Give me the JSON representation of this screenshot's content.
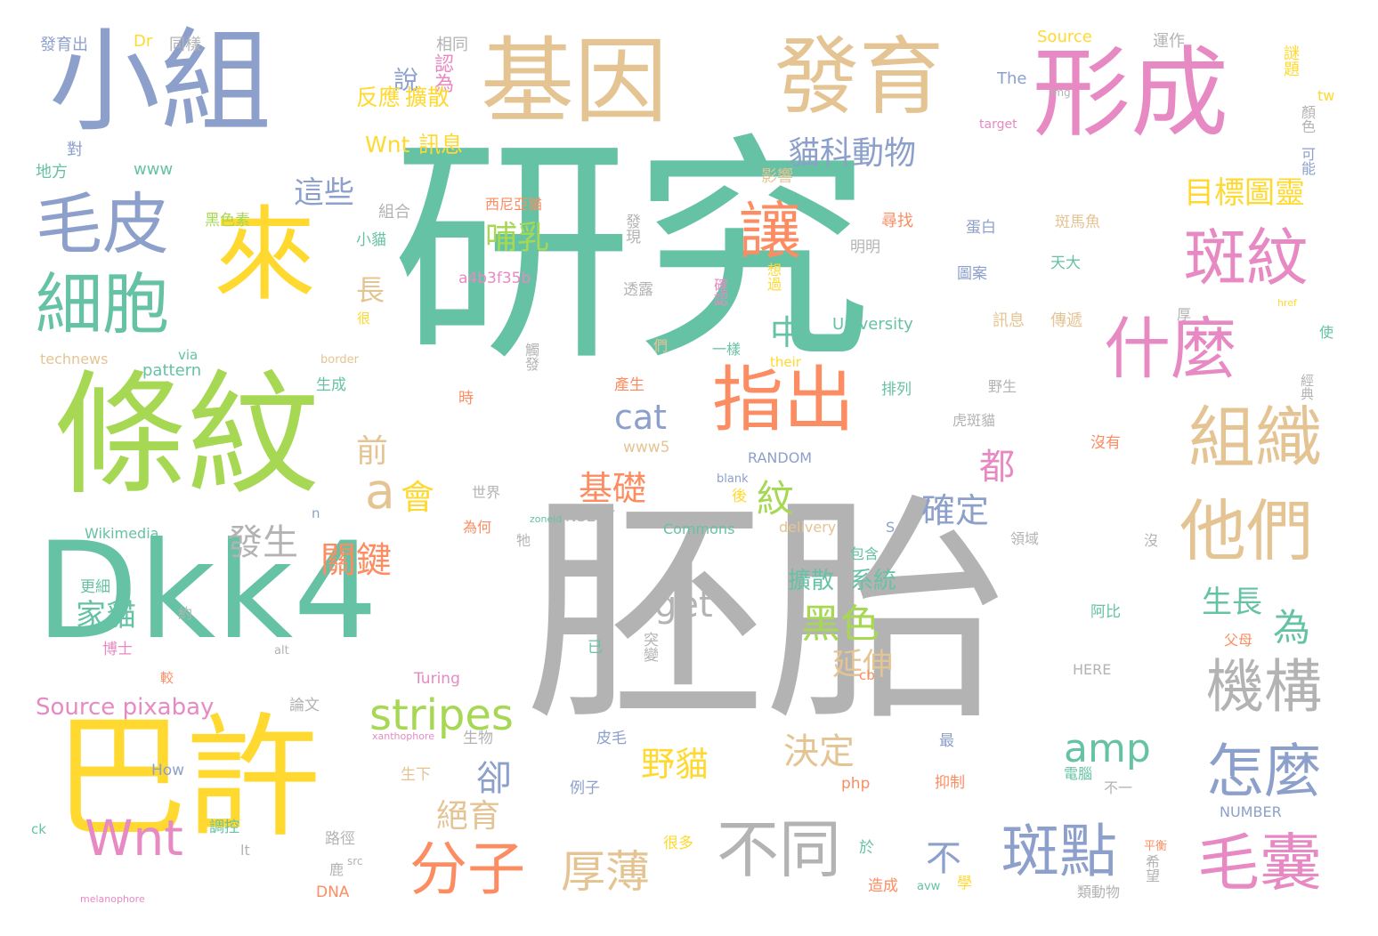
{
  "palette": {
    "teal": "#66c2a5",
    "orange": "#fc8d62",
    "blue": "#8da0cb",
    "pink": "#e78ac3",
    "green": "#a6d854",
    "yellow": "#ffd92f",
    "tan": "#e5c494",
    "gray": "#b3b3b3"
  },
  "words": [
    {
      "text": "研究",
      "color": "teal"
    },
    {
      "text": "胚胎",
      "color": "gray"
    },
    {
      "text": "Dkk4",
      "color": "teal"
    },
    {
      "text": "巴許",
      "color": "yellow"
    },
    {
      "text": "條紋",
      "color": "green"
    },
    {
      "text": "小組",
      "color": "blue"
    },
    {
      "text": "基因",
      "color": "tan"
    },
    {
      "text": "形成",
      "color": "pink"
    },
    {
      "text": "發育",
      "color": "tan"
    },
    {
      "text": "來",
      "color": "yellow"
    },
    {
      "text": "毛皮",
      "color": "blue"
    },
    {
      "text": "細胞",
      "color": "teal"
    },
    {
      "text": "斑紋",
      "color": "pink"
    },
    {
      "text": "什麼",
      "color": "pink"
    },
    {
      "text": "組織",
      "color": "tan"
    },
    {
      "text": "他們",
      "color": "tan"
    },
    {
      "text": "指出",
      "color": "orange"
    },
    {
      "text": "讓",
      "color": "orange"
    },
    {
      "text": "機構",
      "color": "gray"
    },
    {
      "text": "怎麼",
      "color": "blue"
    },
    {
      "text": "毛囊",
      "color": "pink"
    },
    {
      "text": "斑點",
      "color": "blue"
    },
    {
      "text": "不同",
      "color": "gray"
    },
    {
      "text": "分子",
      "color": "orange"
    },
    {
      "text": "Wnt",
      "color": "pink"
    },
    {
      "text": "stripes",
      "color": "green"
    },
    {
      "text": "厚薄",
      "color": "tan"
    },
    {
      "text": "貓科動物",
      "color": "blue"
    },
    {
      "text": "目標圖靈",
      "color": "yellow"
    },
    {
      "text": "這些",
      "color": "blue"
    },
    {
      "text": "哺乳",
      "color": "green"
    },
    {
      "text": "說",
      "color": "blue"
    },
    {
      "text": "認為",
      "color": "pink"
    },
    {
      "text": "反應",
      "color": "yellow"
    },
    {
      "text": "擴散",
      "color": "yellow"
    },
    {
      "text": "Wnt",
      "color": "yellow"
    },
    {
      "text": "訊息",
      "color": "yellow"
    },
    {
      "text": "長",
      "color": "tan"
    },
    {
      "text": "中",
      "color": "teal"
    },
    {
      "text": "cat",
      "color": "blue"
    },
    {
      "text": "a",
      "color": "tan"
    },
    {
      "text": "會",
      "color": "yellow"
    },
    {
      "text": "前",
      "color": "tan"
    },
    {
      "text": "紋",
      "color": "green"
    },
    {
      "text": "都",
      "color": "pink"
    },
    {
      "text": "確定",
      "color": "blue"
    },
    {
      "text": "基礎",
      "color": "orange"
    },
    {
      "text": "發生",
      "color": "gray"
    },
    {
      "text": "關鍵",
      "color": "orange"
    },
    {
      "text": "家貓",
      "color": "teal"
    },
    {
      "text": "get",
      "color": "gray"
    },
    {
      "text": "黑色",
      "color": "green"
    },
    {
      "text": "延伸",
      "color": "tan"
    },
    {
      "text": "為",
      "color": "teal"
    },
    {
      "text": "生長",
      "color": "teal"
    },
    {
      "text": "不",
      "color": "blue"
    },
    {
      "text": "amp",
      "color": "teal"
    },
    {
      "text": "卻",
      "color": "blue"
    },
    {
      "text": "野貓",
      "color": "yellow"
    },
    {
      "text": "決定",
      "color": "tan"
    },
    {
      "text": "絕育",
      "color": "tan"
    },
    {
      "text": "擴散",
      "color": "teal"
    },
    {
      "text": "系統",
      "color": "teal"
    },
    {
      "text": "Source pixabay",
      "color": "pink"
    },
    {
      "text": "發育出",
      "color": "blue"
    },
    {
      "text": "Dr",
      "color": "yellow"
    },
    {
      "text": "同樣",
      "color": "gray"
    },
    {
      "text": "相同",
      "color": "gray"
    },
    {
      "text": "Source",
      "color": "yellow"
    },
    {
      "text": "運作",
      "color": "gray"
    },
    {
      "text": "謎題",
      "color": "yellow"
    },
    {
      "text": "The",
      "color": "blue"
    },
    {
      "text": "tw",
      "color": "yellow"
    },
    {
      "text": "顏色",
      "color": "gray"
    },
    {
      "text": "可能",
      "color": "blue"
    },
    {
      "text": "對",
      "color": "blue"
    },
    {
      "text": "地方",
      "color": "teal"
    },
    {
      "text": "www",
      "color": "teal"
    },
    {
      "text": "影響",
      "color": "tan"
    },
    {
      "text": "組合",
      "color": "gray"
    },
    {
      "text": "黑色素",
      "color": "green"
    },
    {
      "text": "西尼亞貓",
      "color": "orange"
    },
    {
      "text": "發現",
      "color": "gray"
    },
    {
      "text": "尋找",
      "color": "orange"
    },
    {
      "text": "蛋白",
      "color": "blue"
    },
    {
      "text": "斑馬魚",
      "color": "tan"
    },
    {
      "text": "小貓",
      "color": "teal"
    },
    {
      "text": "明明",
      "color": "gray"
    },
    {
      "text": "天大",
      "color": "teal"
    },
    {
      "text": "a4b3f35b",
      "color": "pink"
    },
    {
      "text": "透露",
      "color": "gray"
    },
    {
      "text": "確認",
      "color": "pink"
    },
    {
      "text": "想過",
      "color": "yellow"
    },
    {
      "text": "圖案",
      "color": "blue"
    },
    {
      "text": "University",
      "color": "teal"
    },
    {
      "text": "訊息",
      "color": "tan"
    },
    {
      "text": "傳遞",
      "color": "tan"
    },
    {
      "text": "厚",
      "color": "gray"
    },
    {
      "text": "使",
      "color": "teal"
    },
    {
      "text": "technews",
      "color": "tan"
    },
    {
      "text": "via",
      "color": "teal"
    },
    {
      "text": "pattern",
      "color": "teal"
    },
    {
      "text": "border",
      "color": "tan"
    },
    {
      "text": "們",
      "color": "tan"
    },
    {
      "text": "觸發",
      "color": "gray"
    },
    {
      "text": "一樣",
      "color": "teal"
    },
    {
      "text": "their",
      "color": "yellow"
    },
    {
      "text": "生成",
      "color": "teal"
    },
    {
      "text": "產生",
      "color": "orange"
    },
    {
      "text": "排列",
      "color": "teal"
    },
    {
      "text": "野生",
      "color": "gray"
    },
    {
      "text": "時",
      "color": "orange"
    },
    {
      "text": "虎斑貓",
      "color": "gray"
    },
    {
      "text": "經典",
      "color": "gray"
    },
    {
      "text": "www5",
      "color": "tan"
    },
    {
      "text": "RANDOM",
      "color": "blue"
    },
    {
      "text": "沒有",
      "color": "orange"
    },
    {
      "text": "世界",
      "color": "gray"
    },
    {
      "text": "後",
      "color": "yellow"
    },
    {
      "text": "n",
      "color": "blue"
    },
    {
      "text": "INSERT",
      "color": "gray"
    },
    {
      "text": "Wikimedia",
      "color": "teal"
    },
    {
      "text": "為何",
      "color": "orange"
    },
    {
      "text": "牠",
      "color": "gray"
    },
    {
      "text": "Commons",
      "color": "teal"
    },
    {
      "text": "delivery",
      "color": "tan"
    },
    {
      "text": "S",
      "color": "blue"
    },
    {
      "text": "沒",
      "color": "gray"
    },
    {
      "text": "領域",
      "color": "gray"
    },
    {
      "text": "包含",
      "color": "teal"
    },
    {
      "text": "更細",
      "color": "teal"
    },
    {
      "text": "約",
      "color": "gray"
    },
    {
      "text": "博士",
      "color": "pink"
    },
    {
      "text": "突變",
      "color": "gray"
    },
    {
      "text": "已",
      "color": "teal"
    },
    {
      "text": "阿比",
      "color": "teal"
    },
    {
      "text": "父母",
      "color": "orange"
    },
    {
      "text": "HERE",
      "color": "gray"
    },
    {
      "text": "Turing",
      "color": "pink"
    },
    {
      "text": "論文",
      "color": "gray"
    },
    {
      "text": "生物",
      "color": "gray"
    },
    {
      "text": "皮毛",
      "color": "blue"
    },
    {
      "text": "How",
      "color": "blue"
    },
    {
      "text": "生下",
      "color": "tan"
    },
    {
      "text": "例子",
      "color": "blue"
    },
    {
      "text": "php",
      "color": "orange"
    },
    {
      "text": "抑制",
      "color": "orange"
    },
    {
      "text": "電腦",
      "color": "teal"
    },
    {
      "text": "不一",
      "color": "gray"
    },
    {
      "text": "NUMBER",
      "color": "blue"
    },
    {
      "text": "調控",
      "color": "teal"
    },
    {
      "text": "路徑",
      "color": "gray"
    },
    {
      "text": "很多",
      "color": "yellow"
    },
    {
      "text": "於",
      "color": "teal"
    },
    {
      "text": "造成",
      "color": "orange"
    },
    {
      "text": "學",
      "color": "yellow"
    },
    {
      "text": "類動物",
      "color": "gray"
    },
    {
      "text": "希望",
      "color": "gray"
    },
    {
      "text": "平衡",
      "color": "orange"
    },
    {
      "text": "最",
      "color": "blue"
    },
    {
      "text": "DNA",
      "color": "orange"
    },
    {
      "text": "鹿",
      "color": "gray"
    },
    {
      "text": "lt",
      "color": "gray"
    },
    {
      "text": "ck",
      "color": "teal"
    },
    {
      "text": "很",
      "color": "yellow"
    },
    {
      "text": "較",
      "color": "orange"
    },
    {
      "text": "target",
      "color": "pink"
    },
    {
      "text": "img",
      "color": "gray"
    },
    {
      "text": "href",
      "color": "yellow"
    },
    {
      "text": "cb",
      "color": "orange"
    },
    {
      "text": "blank",
      "color": "blue"
    },
    {
      "text": "alt",
      "color": "gray"
    },
    {
      "text": "src",
      "color": "gray"
    },
    {
      "text": "melanophore",
      "color": "pink"
    },
    {
      "text": "xanthophore",
      "color": "pink"
    },
    {
      "text": "zoneid",
      "color": "teal"
    },
    {
      "text": "avw",
      "color": "teal"
    }
  ]
}
